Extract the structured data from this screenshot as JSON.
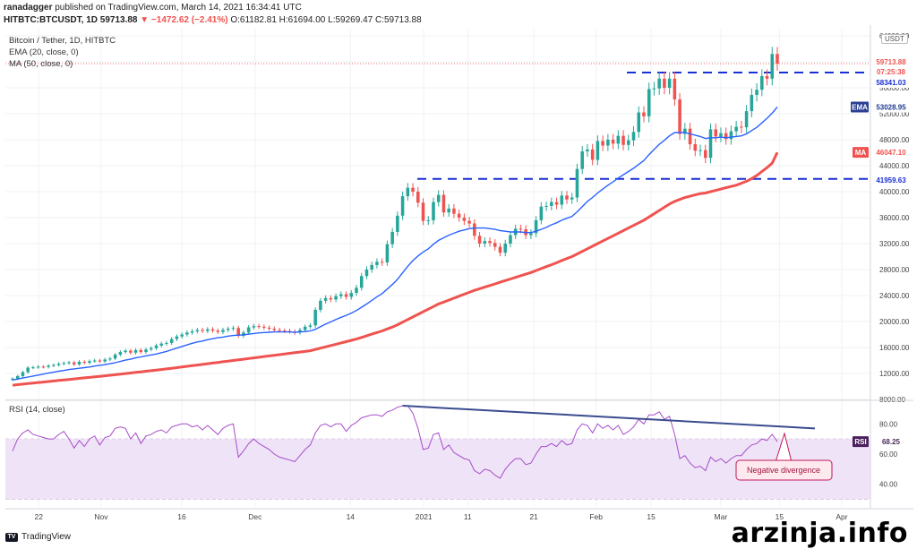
{
  "header": {
    "publisher": "ranadagger",
    "published_text": "published on TradingView.com, March 14, 2021 16:34:41 UTC",
    "symbol_line": "HITBTC:BTCUSDT, 1D",
    "last": "59713.88",
    "change": "▼ −1472.62 (−2.41%)",
    "ohlc": "O:61182.81 H:61694.00 L:59269.47 C:59713.88"
  },
  "indicators": {
    "title": "Bitcoin / Tether, 1D, HITBTC",
    "ema_label": "EMA (20, close, 0)",
    "ma_label": "MA (50, close, 0)",
    "rsi_label": "RSI (14, close)"
  },
  "currency_badge": "USDT",
  "labels": {
    "price": "59713.88",
    "countdown": "07:25:38",
    "resistance": "58341.03",
    "ema_tag": "EMA",
    "ema_value": "53028.95",
    "ma_tag": "MA",
    "ma_value": "46047.10",
    "support": "41959.63",
    "rsi_tag": "RSI",
    "rsi_value": "68.25",
    "annotation": "Negative divergence"
  },
  "brand": "TradingView",
  "watermark": "arzinja.info",
  "colors": {
    "up": "#26a69a",
    "down": "#ef5350",
    "ema": "#2962ff",
    "ma": "#ef5350",
    "hline": "#1a2fd6",
    "rsi": "#a64dc9",
    "rsi_band": "#efe3f7",
    "trend": "#3a4c8f"
  },
  "chart_data": {
    "type": "candlestick",
    "y_ticks": [
      "64000.00",
      "60000.00",
      "56000.00",
      "52000.00",
      "48000.00",
      "44000.00",
      "40000.00",
      "36000.00",
      "32000.00",
      "28000.00",
      "24000.00",
      "20000.00",
      "16000.00",
      "12000.00",
      "8000.00"
    ],
    "x_ticks": [
      "22",
      "Nov",
      "16",
      "Dec",
      "14",
      "2021",
      "11",
      "21",
      "Feb",
      "15",
      "Mar",
      "15",
      "Apr"
    ],
    "rsi_ticks": [
      "80.00",
      "60.00",
      "40.00"
    ],
    "rsi_band": [
      30,
      70
    ],
    "hlines": [
      58341.03,
      41959.63
    ],
    "close": [
      11200,
      11600,
      12200,
      12900,
      12950,
      13050,
      13000,
      13200,
      13300,
      13500,
      13600,
      13700,
      13400,
      13800,
      13650,
      13900,
      14000,
      13850,
      14150,
      14300,
      14900,
      15300,
      15500,
      15200,
      15600,
      15300,
      15700,
      15900,
      16300,
      16600,
      16700,
      17300,
      17700,
      18000,
      18300,
      18500,
      18700,
      18550,
      18800,
      18600,
      18400,
      18700,
      18900,
      19000,
      17800,
      18300,
      19100,
      19300,
      19200,
      19050,
      18900,
      18700,
      18600,
      18550,
      18450,
      18300,
      18700,
      19200,
      19400,
      21800,
      23200,
      23600,
      23400,
      23900,
      24200,
      23800,
      24400,
      25200,
      27000,
      28000,
      28700,
      29200,
      29100,
      31900,
      33800,
      36300,
      39300,
      40600,
      40000,
      38300,
      35500,
      35600,
      38400,
      39500,
      36800,
      37400,
      36600,
      36000,
      35500,
      35100,
      33200,
      32000,
      32400,
      32100,
      31500,
      30600,
      32000,
      33300,
      34300,
      34200,
      33300,
      33600,
      35600,
      37700,
      37800,
      38400,
      38000,
      39400,
      38800,
      39100,
      43500,
      46200,
      46500,
      44900,
      47800,
      47100,
      48000,
      47400,
      48600,
      47200,
      47900,
      49200,
      52200,
      51600,
      55800,
      55900,
      57400,
      56000,
      57400,
      54200,
      48900,
      49700,
      47300,
      46300,
      46400,
      45200,
      49600,
      48500,
      49000,
      48100,
      49300,
      50000,
      49900,
      52400,
      54900,
      55700,
      57800,
      57400,
      61200,
      59713.88
    ],
    "ema": [
      11000,
      11150,
      11300,
      11450,
      11600,
      11750,
      11900,
      12050,
      12200,
      12350,
      12450,
      12600,
      12700,
      12800,
      12900,
      13000,
      13150,
      13250,
      13350,
      13500,
      13650,
      13850,
      14050,
      14200,
      14400,
      14550,
      14700,
      14850,
      15000,
      15200,
      15400,
      15650,
      15900,
      16150,
      16400,
      16650,
      16850,
      17000,
      17200,
      17350,
      17500,
      17600,
      17750,
      17850,
      17900,
      17950,
      18050,
      18150,
      18250,
      18300,
      18350,
      18400,
      18400,
      18400,
      18400,
      18350,
      18400,
      18450,
      18550,
      18800,
      19200,
      19600,
      19950,
      20300,
      20650,
      20950,
      21300,
      21700,
      22200,
      22700,
      23250,
      23800,
      24300,
      25000,
      25700,
      26500,
      27500,
      28500,
      29400,
      30100,
      30700,
      31200,
      31900,
      32500,
      32900,
      33300,
      33600,
      33900,
      34100,
      34300,
      34400,
      34400,
      34400,
      34300,
      34200,
      34000,
      33900,
      33800,
      33800,
      33800,
      33700,
      33700,
      33900,
      34200,
      34500,
      34900,
      35200,
      35600,
      35900,
      36200,
      36900,
      37700,
      38500,
      39100,
      39800,
      40400,
      41000,
      41500,
      42100,
      42600,
      43100,
      43600,
      44200,
      44800,
      45700,
      46500,
      47300,
      47900,
      48600,
      49100,
      49100,
      49100,
      48900,
      48700,
      48500,
      48200,
      48300,
      48300,
      48400,
      48300,
      48400,
      48500,
      48600,
      48900,
      49400,
      49900,
      50600,
      51300,
      52100,
      53028.95
    ],
    "ma": [
      10200,
      10280,
      10360,
      10440,
      10520,
      10600,
      10680,
      10760,
      10840,
      10920,
      11000,
      11080,
      11160,
      11240,
      11320,
      11400,
      11480,
      11560,
      11640,
      11720,
      11800,
      11890,
      11980,
      12070,
      12160,
      12250,
      12340,
      12430,
      12520,
      12610,
      12700,
      12800,
      12900,
      13000,
      13100,
      13200,
      13300,
      13400,
      13500,
      13600,
      13700,
      13800,
      13900,
      14000,
      14100,
      14200,
      14300,
      14400,
      14500,
      14600,
      14700,
      14800,
      14900,
      15000,
      15100,
      15200,
      15300,
      15400,
      15500,
      15700,
      15900,
      16100,
      16300,
      16500,
      16700,
      16900,
      17100,
      17300,
      17550,
      17800,
      18050,
      18300,
      18550,
      18850,
      19150,
      19500,
      19900,
      20300,
      20700,
      21100,
      21500,
      21900,
      22300,
      22700,
      23000,
      23300,
      23600,
      23900,
      24200,
      24500,
      24800,
      25050,
      25300,
      25550,
      25800,
      26050,
      26300,
      26550,
      26800,
      27050,
      27300,
      27550,
      27850,
      28150,
      28450,
      28750,
      29050,
      29400,
      29700,
      30000,
      30400,
      30800,
      31200,
      31600,
      32000,
      32400,
      32800,
      33200,
      33600,
      34000,
      34400,
      34800,
      35200,
      35600,
      36100,
      36600,
      37100,
      37600,
      38100,
      38500,
      38800,
      39100,
      39300,
      39500,
      39700,
      39800,
      40000,
      40200,
      40400,
      40600,
      40800,
      41000,
      41300,
      41600,
      42000,
      42500,
      43100,
      43700,
      44400,
      46047.1
    ],
    "rsi": [
      62,
      70,
      74,
      76,
      73,
      72,
      71,
      70,
      70,
      73,
      75,
      70,
      64,
      69,
      65,
      70,
      72,
      66,
      71,
      72,
      77,
      78,
      77,
      70,
      74,
      67,
      72,
      73,
      75,
      76,
      74,
      78,
      79,
      80,
      80,
      78,
      79,
      76,
      79,
      76,
      73,
      77,
      79,
      80,
      58,
      62,
      67,
      70,
      67,
      65,
      63,
      60,
      58,
      57,
      56,
      55,
      59,
      63,
      66,
      74,
      79,
      80,
      78,
      80,
      80,
      75,
      79,
      81,
      84,
      85,
      86,
      86,
      85,
      88,
      89,
      91,
      92,
      92,
      87,
      77,
      63,
      64,
      73,
      74,
      63,
      66,
      61,
      59,
      57,
      56,
      49,
      47,
      50,
      49,
      46,
      44,
      50,
      54,
      57,
      57,
      53,
      54,
      60,
      65,
      65,
      67,
      65,
      69,
      66,
      67,
      76,
      80,
      79,
      74,
      80,
      77,
      79,
      76,
      79,
      73,
      75,
      78,
      83,
      80,
      86,
      86,
      88,
      83,
      85,
      73,
      57,
      59,
      54,
      51,
      52,
      49,
      58,
      55,
      57,
      54,
      57,
      59,
      59,
      63,
      66,
      67,
      70,
      69,
      73,
      68.25
    ]
  }
}
